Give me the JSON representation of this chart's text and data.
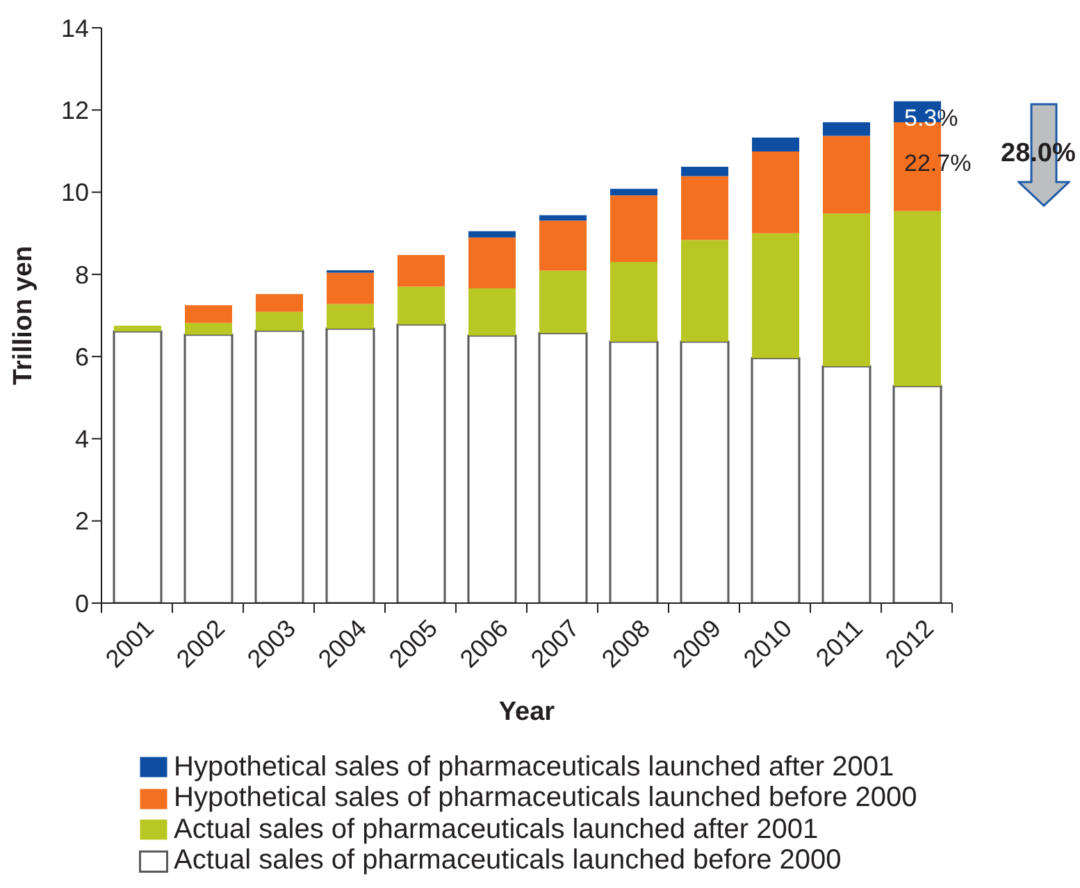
{
  "chart_data": {
    "type": "bar",
    "stacked": true,
    "xlabel": "Year",
    "ylabel": "Trillion yen",
    "categories": [
      "2001",
      "2002",
      "2003",
      "2004",
      "2005",
      "2006",
      "2007",
      "2008",
      "2009",
      "2010",
      "2011",
      "2012"
    ],
    "series": [
      {
        "name": "Actual sales of pharmaceuticals launched before 2000",
        "color": "#ffffff",
        "values": [
          6.61,
          6.53,
          6.63,
          6.68,
          6.78,
          6.51,
          6.57,
          6.36,
          6.36,
          5.96,
          5.76,
          5.28
        ]
      },
      {
        "name": "Actual sales of pharmaceuticals launched after 2001",
        "color": "#b9c724",
        "values": [
          0.14,
          0.29,
          0.46,
          0.6,
          0.92,
          1.15,
          1.52,
          1.94,
          2.48,
          3.04,
          3.72,
          4.26
        ]
      },
      {
        "name": "Hypothetical sales of pharmaceuticals launched before 2000",
        "color": "#f37021",
        "values": [
          null,
          0.43,
          0.43,
          0.76,
          0.77,
          1.24,
          1.22,
          1.62,
          1.55,
          1.99,
          1.89,
          2.16
        ]
      },
      {
        "name": "Hypothetical sales of pharmaceuticals launched after 2001",
        "color": "#0d4ea3",
        "values": [
          null,
          null,
          null,
          0.06,
          null,
          0.15,
          0.13,
          0.16,
          0.23,
          0.34,
          0.33,
          0.51
        ]
      }
    ],
    "ylim": [
      0,
      14
    ],
    "yticks": [
      0,
      2,
      4,
      6,
      8,
      10,
      12,
      14
    ],
    "annotations": [
      {
        "text": "5.3%",
        "x": "2012",
        "y": 11.8
      },
      "22.7%",
      "28.0%"
    ],
    "legend": "bottom"
  }
}
